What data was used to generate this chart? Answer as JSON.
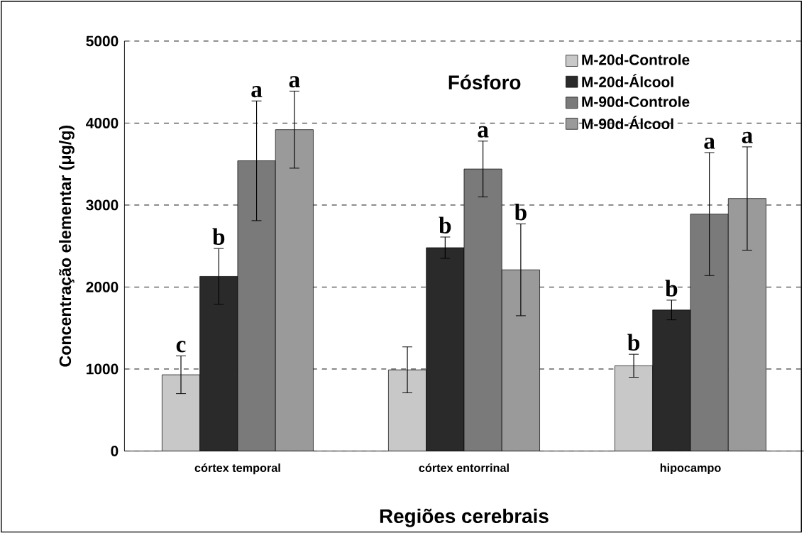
{
  "chart_data": {
    "type": "bar",
    "xlabel": "Regiões cerebrais",
    "ylabel": "Concentração elementar (μg/g)",
    "categories": [
      "córtex temporal",
      "córtex entorrinal",
      "hipocampo"
    ],
    "series": [
      {
        "name": "M-20d-Controle",
        "color": "#c8c8c8",
        "values": [
          930,
          990,
          1040
        ],
        "errors": [
          230,
          280,
          140
        ],
        "value_labels": [
          "c",
          null,
          "b"
        ]
      },
      {
        "name": "M-20d-Álcool",
        "color": "#2a2a2a",
        "values": [
          2130,
          2480,
          1720
        ],
        "errors": [
          340,
          130,
          120
        ],
        "value_labels": [
          "b",
          "b",
          "b"
        ]
      },
      {
        "name": "M-90d-Controle",
        "color": "#7a7a7a",
        "values": [
          3540,
          3440,
          2890
        ],
        "errors": [
          730,
          340,
          750
        ],
        "value_labels": [
          "a",
          "a",
          "a"
        ]
      },
      {
        "name": "M-90d-Álcool",
        "color": "#9a9a9a",
        "values": [
          3920,
          2210,
          3080
        ],
        "errors": [
          470,
          560,
          630
        ],
        "value_labels": [
          "a",
          "b",
          "a"
        ]
      }
    ],
    "ylim": [
      0,
      5000
    ],
    "yticks": [
      0,
      1000,
      2000,
      3000,
      4000,
      5000
    ],
    "grid": "y",
    "legend": "top right",
    "annotations": [
      "Fósforo"
    ]
  }
}
